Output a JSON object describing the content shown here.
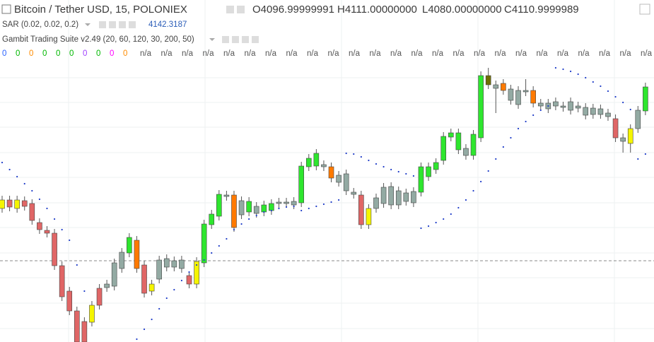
{
  "header": {
    "title": "Bitcoin / Tether USD, 15, POLONIEX",
    "ohlc": [
      "O4096.99999991",
      "H4111.00000000",
      "L4080.00000000",
      "C4110.9999989"
    ]
  },
  "indicators": {
    "sar": {
      "label": "SAR (0.02, 0.02, 0.2)",
      "value": "4142.3187"
    },
    "gambit": {
      "label": "Gambit Trading Suite v2.49 (20, 60, 120, 30, 200, 50)"
    },
    "readouts": [
      {
        "text": "0",
        "color": "#2962ff"
      },
      {
        "text": "0",
        "color": "#00b800"
      },
      {
        "text": "0",
        "color": "#ff8c00"
      },
      {
        "text": "0",
        "color": "#00b800"
      },
      {
        "text": "0",
        "color": "#00b800"
      },
      {
        "text": "0",
        "color": "#00b800"
      },
      {
        "text": "0",
        "color": "#a040ff"
      },
      {
        "text": "0",
        "color": "#00b800"
      },
      {
        "text": "0",
        "color": "#ff00ff"
      },
      {
        "text": "0",
        "color": "#ff8c00"
      },
      {
        "text": "n/a",
        "color": "#555555"
      },
      {
        "text": "n/a",
        "color": "#555555"
      },
      {
        "text": "n/a",
        "color": "#555555"
      },
      {
        "text": "n/a",
        "color": "#555555"
      },
      {
        "text": "n/a",
        "color": "#555555"
      },
      {
        "text": "n/a",
        "color": "#555555"
      },
      {
        "text": "n/a",
        "color": "#555555"
      },
      {
        "text": "n/a",
        "color": "#555555"
      },
      {
        "text": "n/a",
        "color": "#555555"
      },
      {
        "text": "n/a",
        "color": "#555555"
      },
      {
        "text": "n/a",
        "color": "#555555"
      },
      {
        "text": "n/a",
        "color": "#555555"
      },
      {
        "text": "n/a",
        "color": "#555555"
      },
      {
        "text": "n/a",
        "color": "#555555"
      },
      {
        "text": "n/a",
        "color": "#555555"
      },
      {
        "text": "n/a",
        "color": "#555555"
      },
      {
        "text": "n/a",
        "color": "#555555"
      },
      {
        "text": "n/a",
        "color": "#555555"
      },
      {
        "text": "n/a",
        "color": "#555555"
      },
      {
        "text": "n/a",
        "color": "#555555"
      },
      {
        "text": "n/a",
        "color": "#555555"
      },
      {
        "text": "n/a",
        "color": "#555555"
      },
      {
        "text": "n/a",
        "color": "#555555"
      },
      {
        "text": "n/a",
        "color": "#555555"
      },
      {
        "text": "n/a",
        "color": "#555555"
      }
    ]
  },
  "chart_data": {
    "type": "candlestick",
    "open": [
      4018.5,
      4018.5,
      4018.5,
      4018,
      4016,
      4002.5,
      3997,
      3995,
      3972,
      3954,
      3940,
      3932.5,
      3944,
      3956,
      3956.5,
      3957.5,
      3970,
      3981,
      3990,
      3972.5,
      3959,
      3962.5,
      3971,
      3975.5,
      3970,
      3965,
      3975,
      3974,
      4001,
      4007,
      4022,
      4022,
      4008,
      4010,
      4014,
      4010,
      4011,
      4016,
      4017,
      4015,
      4016.5,
      4042,
      4042.5,
      4043.5,
      4042,
      4036,
      4037,
      4024,
      4022,
      4001,
      4012.5,
      4016,
      4028,
      4015,
      4023.5,
      4016.5,
      4024,
      4035,
      4040,
      4046.5,
      4063,
      4054,
      4055,
      4050,
      4062.5,
      4106.5,
      4100,
      4101,
      4097,
      4086,
      4096,
      4096,
      4087,
      4083,
      4085,
      4085,
      4082,
      4085,
      4084,
      4079,
      4083,
      4080,
      4076,
      4062.5,
      4058.5,
      4069,
      4081.5
    ],
    "high": [
      4021.5,
      4021.5,
      4021.5,
      4021,
      4019,
      4005.5,
      4000,
      3998,
      3975,
      3957,
      3943,
      3935.5,
      3947,
      3959,
      3962,
      3977,
      3984.5,
      3995,
      3993,
      3975.5,
      3962,
      3979,
      3980,
      3978.5,
      3979,
      3968,
      3978,
      4004.5,
      4011.5,
      4025.5,
      4025,
      4025,
      4021,
      4020.5,
      4017,
      4018,
      4019,
      4020,
      4020,
      4020.5,
      4045.5,
      4051,
      4054.5,
      4046.5,
      4045,
      4039,
      4040,
      4027,
      4025,
      4015.5,
      4023,
      4030.5,
      4031,
      4028,
      4026.5,
      4027.5,
      4045,
      4045,
      4048,
      4066.5,
      4069,
      4069,
      4058,
      4068,
      4109.5,
      4112,
      4103,
      4104,
      4100,
      4099,
      4104,
      4099,
      4090,
      4090,
      4091,
      4088,
      4091,
      4088,
      4087,
      4086.5,
      4086,
      4083,
      4079,
      4065.5,
      4072,
      4085,
      4101.5
    ],
    "low": [
      4009.5,
      4010.5,
      4009.5,
      4011,
      4001,
      3994.5,
      3992,
      3969,
      3947,
      3937,
      3915,
      3915,
      3929,
      3941,
      3953.5,
      3954.5,
      3967,
      3978,
      3967,
      3949.5,
      3951,
      3959.5,
      3968,
      3968,
      3967,
      3956,
      3956,
      3971,
      3998,
      4004,
      4018,
      3996,
      4005,
      4007,
      4006,
      4007,
      4008,
      4013,
      4013,
      4012,
      4013.5,
      4039,
      4039.5,
      4039,
      4031,
      4028,
      4022,
      4019.5,
      3998,
      3998,
      4009.5,
      4013,
      4012,
      4012,
      4014.5,
      4013.5,
      4021,
      4032,
      4037,
      4043.5,
      4060,
      4051,
      4047,
      4047,
      4059.5,
      4097,
      4080,
      4093,
      4086,
      4083,
      4092,
      4084,
      4082,
      4080,
      4082,
      4081,
      4079,
      4080.5,
      4075.5,
      4076,
      4076,
      4074.5,
      4059.5,
      4052,
      4052,
      4066,
      4078.5
    ],
    "close": [
      4012.5,
      4013.5,
      4012.5,
      4014,
      4004,
      3997.5,
      3995,
      3972,
      3950,
      3940,
      3918,
      3918,
      3932,
      3944,
      3959,
      3974,
      3981.5,
      3992,
      3970,
      3952.5,
      3954,
      3976,
      3977,
      3971,
      3976,
      3959,
      3959,
      4001.5,
      4008.5,
      4022.5,
      4021,
      3999,
      4018,
      4017.5,
      4009,
      4015,
      4016,
      4017,
      4016,
      4017.5,
      4042.5,
      4048,
      4051.5,
      4042,
      4034,
      4031,
      4025,
      4022.5,
      4001,
      4012.5,
      4020,
      4027.5,
      4015,
      4025,
      4017.5,
      4024.5,
      4042,
      4042,
      4045,
      4063.5,
      4066,
      4066,
      4050,
      4065,
      4106.5,
      4100,
      4097.5,
      4096,
      4089,
      4096,
      4095,
      4087,
      4085,
      4087,
      4088,
      4084,
      4088,
      4083.5,
      4078.5,
      4083.5,
      4079,
      4077.5,
      4062.5,
      4060,
      4069,
      4082,
      4098.5
    ],
    "colors": [
      "#f5f500",
      "#e06666",
      "#f5f500",
      "#e06666",
      "#e06666",
      "#e06666",
      "#e06666",
      "#e06666",
      "#e06666",
      "#e06666",
      "#e06666",
      "#e06666",
      "#f5f500",
      "#e06666",
      "#93aaa3",
      "#93aaa3",
      "#93aaa3",
      "#2ee62e",
      "#ff7a00",
      "#e06666",
      "#f5f500",
      "#93aaa3",
      "#93aaa3",
      "#93aaa3",
      "#93aaa3",
      "#e06666",
      "#f5f500",
      "#2ee62e",
      "#2ee62e",
      "#2ee62e",
      "#93aaa3",
      "#ff7a00",
      "#93aaa3",
      "#2ee62e",
      "#93aaa3",
      "#2ee62e",
      "#2ee62e",
      "#93aaa3",
      "#93aaa3",
      "#93aaa3",
      "#2ee62e",
      "#2ee62e",
      "#2ee62e",
      "#93aaa3",
      "#ff7a00",
      "#93aaa3",
      "#93aaa3",
      "#93aaa3",
      "#e06666",
      "#f5f500",
      "#93aaa3",
      "#93aaa3",
      "#93aaa3",
      "#93aaa3",
      "#93aaa3",
      "#93aaa3",
      "#2ee62e",
      "#2ee62e",
      "#2ee62e",
      "#2ee62e",
      "#2ee62e",
      "#2ee62e",
      "#93aaa3",
      "#2ee62e",
      "#2ee62e",
      "#6e6e00",
      "#93aaa3",
      "#ff7a00",
      "#93aaa3",
      "#93aaa3",
      "#93aaa3",
      "#ff7a00",
      "#93aaa3",
      "#93aaa3",
      "#93aaa3",
      "#93aaa3",
      "#93aaa3",
      "#93aaa3",
      "#93aaa3",
      "#93aaa3",
      "#93aaa3",
      "#93aaa3",
      "#e06666",
      "#93aaa3",
      "#f5f500",
      "#93aaa3",
      "#2ee62e"
    ],
    "sar": [
      4045,
      4040,
      4035,
      4030,
      4025,
      4019,
      4012.5,
      4005,
      3997.5,
      3990,
      3972.5,
      3954,
      null,
      null,
      null,
      null,
      null,
      null,
      3920,
      3927,
      3934,
      3941.5,
      3949,
      3955,
      3961.5,
      3967.5,
      3972.5,
      3976,
      3981,
      3986,
      3991,
      3997.5,
      4001.5,
      4005,
      4007.5,
      4010,
      4011,
      4012.5,
      4013.5,
      4014,
      4011,
      4012.5,
      4014,
      4015.5,
      4017,
      4018.5,
      4051.5,
      4051,
      4049,
      4046.5,
      4044,
      4042,
      4040,
      4038.5,
      4037,
      4035.5,
      3998.5,
      4000,
      4002.5,
      4005,
      4008.5,
      4013,
      4018.5,
      4025,
      4031.5,
      4039,
      4047.5,
      4056,
      4062.5,
      4069,
      4074,
      4078.5,
      4082,
      4085,
      4112,
      4111,
      4109.5,
      4107.5,
      4105,
      4102,
      4099,
      4095.5,
      4091.5,
      4087.5,
      4082.5,
      4047.5,
      4051
    ],
    "sar_color": "#1e3cc8",
    "ylim": [
      3918,
      4160
    ],
    "grid_lines": [
      4105,
      4087.5,
      4070,
      4052,
      4034.5,
      4016.5,
      3999,
      3981,
      3963.5,
      3945.5,
      3927.5
    ],
    "price_line": 3975.5
  }
}
